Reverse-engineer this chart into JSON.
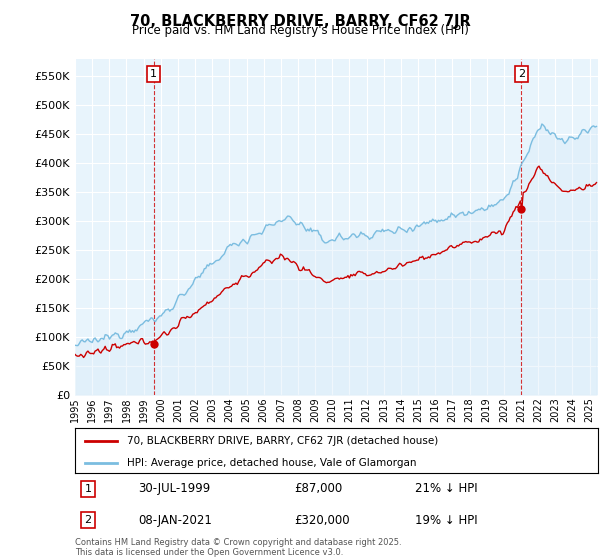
{
  "title": "70, BLACKBERRY DRIVE, BARRY, CF62 7JR",
  "subtitle": "Price paid vs. HM Land Registry's House Price Index (HPI)",
  "legend_line1": "70, BLACKBERRY DRIVE, BARRY, CF62 7JR (detached house)",
  "legend_line2": "HPI: Average price, detached house, Vale of Glamorgan",
  "footnote": "Contains HM Land Registry data © Crown copyright and database right 2025.\nThis data is licensed under the Open Government Licence v3.0.",
  "sale1_date": "30-JUL-1999",
  "sale1_price": "£87,000",
  "sale1_hpi": "21% ↓ HPI",
  "sale2_date": "08-JAN-2021",
  "sale2_price": "£320,000",
  "sale2_hpi": "19% ↓ HPI",
  "hpi_color": "#7bbde0",
  "hpi_fill_color": "#d6eaf8",
  "price_color": "#cc0000",
  "marker_color": "#cc0000",
  "box_color": "#cc0000",
  "ylim": [
    0,
    580000
  ],
  "yticks": [
    0,
    50000,
    100000,
    150000,
    200000,
    250000,
    300000,
    350000,
    400000,
    450000,
    500000,
    550000
  ],
  "xlim_start": 1995,
  "xlim_end": 2025.5,
  "sale1_x": 1999.58,
  "sale1_y": 87000,
  "sale2_x": 2021.02,
  "sale2_y": 320000
}
